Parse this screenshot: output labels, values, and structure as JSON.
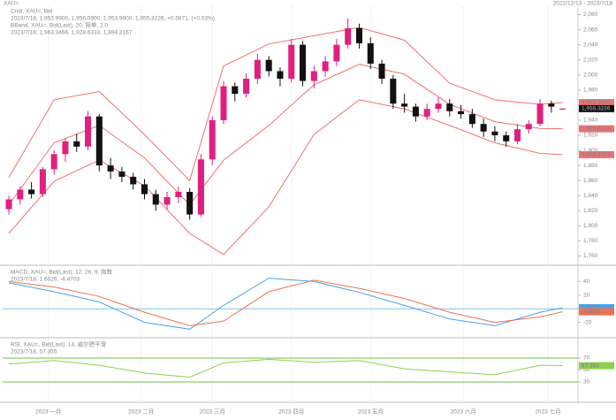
{
  "header": {
    "left": "XAU=",
    "right": "2022/12/13 - 2023/7/18"
  },
  "chart_data": [
    {
      "type": "candlestick",
      "legend": [
        {
          "text": "Cndl, XAU=, Bid",
          "color": "#222222"
        },
        {
          "text": "2023/7/18, 1,953.9900, 1,956.0900, 1,953.9900, 1,955.3226, +0.5871, (+0.03%)",
          "color": "#222222"
        },
        {
          "text": "BBand, XAU=, Bid(Last), 20, 简单, 2.0",
          "color": "#e03030"
        },
        {
          "text": "2023/7/18, 1,963.3466, 1,928.6333, 1,894.3167",
          "color": "#e03030"
        }
      ],
      "up_color": "#e0207f",
      "down_color": "#111111",
      "ohlc": [
        [
          1822,
          1840,
          1815,
          1835
        ],
        [
          1835,
          1852,
          1828,
          1848
        ],
        [
          1848,
          1858,
          1836,
          1842
        ],
        [
          1842,
          1878,
          1838,
          1875
        ],
        [
          1875,
          1900,
          1868,
          1895
        ],
        [
          1895,
          1916,
          1885,
          1912
        ],
        [
          1912,
          1922,
          1898,
          1905
        ],
        [
          1905,
          1952,
          1900,
          1945
        ],
        [
          1945,
          1948,
          1872,
          1880
        ],
        [
          1880,
          1890,
          1862,
          1872
        ],
        [
          1872,
          1878,
          1858,
          1865
        ],
        [
          1865,
          1870,
          1848,
          1855
        ],
        [
          1855,
          1862,
          1835,
          1842
        ],
        [
          1842,
          1848,
          1820,
          1828
        ],
        [
          1828,
          1845,
          1822,
          1838
        ],
        [
          1838,
          1852,
          1830,
          1845
        ],
        [
          1845,
          1850,
          1808,
          1815
        ],
        [
          1815,
          1895,
          1812,
          1888
        ],
        [
          1888,
          1945,
          1880,
          1940
        ],
        [
          1940,
          1992,
          1935,
          1985
        ],
        [
          1985,
          1990,
          1965,
          1975
        ],
        [
          1975,
          2002,
          1970,
          1995
        ],
        [
          1995,
          2028,
          1988,
          2020
        ],
        [
          2020,
          2025,
          1998,
          2005
        ],
        [
          2005,
          2010,
          1985,
          1995
        ],
        [
          1995,
          2048,
          1990,
          2040
        ],
        [
          2040,
          2045,
          1985,
          1992
        ],
        [
          1992,
          2012,
          1982,
          2005
        ],
        [
          2005,
          2025,
          1998,
          2018
        ],
        [
          2018,
          2048,
          2012,
          2040
        ],
        [
          2040,
          2075,
          2035,
          2062
        ],
        [
          2062,
          2068,
          2035,
          2042
        ],
        [
          2042,
          2050,
          2008,
          2015
        ],
        [
          2015,
          2020,
          1988,
          1995
        ],
        [
          1995,
          2000,
          1955,
          1962
        ],
        [
          1962,
          1975,
          1950,
          1958
        ],
        [
          1958,
          1962,
          1938,
          1945
        ],
        [
          1945,
          1962,
          1940,
          1955
        ],
        [
          1955,
          1970,
          1950,
          1962
        ],
        [
          1962,
          1968,
          1945,
          1952
        ],
        [
          1952,
          1960,
          1942,
          1948
        ],
        [
          1948,
          1955,
          1930,
          1935
        ],
        [
          1935,
          1942,
          1918,
          1925
        ],
        [
          1925,
          1932,
          1912,
          1920
        ],
        [
          1920,
          1925,
          1905,
          1912
        ],
        [
          1912,
          1935,
          1908,
          1928
        ],
        [
          1928,
          1940,
          1922,
          1935
        ],
        [
          1935,
          1968,
          1932,
          1962
        ],
        [
          1962,
          1966,
          1950,
          1958
        ],
        [
          1953.99,
          1956.09,
          1953.99,
          1955.3226
        ]
      ],
      "last_label": "1,955.3226",
      "last_label_color": "#111111",
      "series": [
        {
          "color": "#f07070",
          "x": [
            0,
            4,
            8,
            12,
            16,
            19,
            23,
            27,
            31,
            35,
            39,
            43,
            47,
            49
          ],
          "values": [
            1864,
            1967,
            1978,
            1921,
            1860,
            2012,
            2041,
            2052,
            2063,
            2046,
            1989,
            1967,
            1961,
            1963.3466
          ],
          "value_labels": [
            null,
            null,
            null,
            null,
            null,
            null,
            null,
            null,
            null,
            null,
            null,
            null,
            null,
            "1,963.3466"
          ]
        },
        {
          "color": "#f07070",
          "x": [
            0,
            4,
            8,
            12,
            16,
            19,
            23,
            27,
            31,
            35,
            39,
            43,
            47,
            49
          ],
          "values": [
            1828,
            1910,
            1933,
            1890,
            1828,
            1887,
            1933,
            1987,
            2014,
            2001,
            1961,
            1938,
            1929,
            1928.6333
          ],
          "value_labels": [
            null,
            null,
            null,
            null,
            null,
            null,
            null,
            null,
            null,
            null,
            null,
            null,
            null,
            "1,928.6333"
          ]
        },
        {
          "color": "#f07070",
          "x": [
            0,
            4,
            8,
            12,
            16,
            19,
            23,
            27,
            31,
            35,
            39,
            43,
            47,
            49
          ],
          "values": [
            1790,
            1859,
            1887,
            1853,
            1790,
            1762,
            1825,
            1921,
            1967,
            1955,
            1933,
            1910,
            1896,
            1894.3167
          ],
          "value_labels": [
            null,
            null,
            null,
            null,
            null,
            null,
            null,
            null,
            null,
            null,
            null,
            null,
            null,
            "1,894.3167"
          ]
        }
      ],
      "xlim": [
        -0.55,
        50.2
      ],
      "ylim": [
        1750,
        2090
      ],
      "yticks": [
        {
          "value": 1760,
          "label": "1,760"
        },
        {
          "value": 1780,
          "label": "1,780"
        },
        {
          "value": 1800,
          "label": "1,800"
        },
        {
          "value": 1820,
          "label": "1,820"
        },
        {
          "value": 1840,
          "label": "1,840"
        },
        {
          "value": 1860,
          "label": "1,860"
        },
        {
          "value": 1880,
          "label": "1,880"
        },
        {
          "value": 1900,
          "label": "1,900"
        },
        {
          "value": 1920,
          "label": "1,920"
        },
        {
          "value": 1940,
          "label": "1,940"
        },
        {
          "value": 1960,
          "label": "1,960"
        },
        {
          "value": 1980,
          "label": "1,980"
        },
        {
          "value": 2000,
          "label": "2,000"
        },
        {
          "value": 2020,
          "label": "2,020"
        },
        {
          "value": 2040,
          "label": "2,040"
        },
        {
          "value": 2060,
          "label": "2,060"
        },
        {
          "value": 2080,
          "label": "2,080"
        }
      ],
      "xticks": [
        {
          "value": 3.5,
          "label": "2023 一月"
        },
        {
          "value": 11.7,
          "label": "2023 二月"
        },
        {
          "value": 18,
          "label": "2023 三月"
        },
        {
          "value": 25,
          "label": "2023 四月"
        },
        {
          "value": 32,
          "label": "2023 五月"
        },
        {
          "value": 40.2,
          "label": "2023 六月"
        },
        {
          "value": 47.7,
          "label": "2023 七月"
        }
      ]
    },
    {
      "type": "line",
      "legend": [
        {
          "text": "MACD, XAU=, Bid(Last), 12, 26, 9, 指数",
          "color": "#3a8fd8"
        },
        {
          "text": "2023/7/18, 1.6026, -4.4703",
          "color": "#3a8fd8"
        }
      ],
      "reference_lines": [
        0
      ],
      "reference_color": "#7fc4f0",
      "series": [
        {
          "color": "#4aa3e8",
          "x": [
            0,
            4,
            8,
            12,
            16,
            19,
            23,
            27,
            31,
            35,
            39,
            43,
            47,
            49
          ],
          "values": [
            38,
            25,
            10,
            -20,
            -30,
            5,
            45,
            40,
            24,
            5,
            -15,
            -25,
            -5,
            1.6026
          ],
          "value_labels": [
            null,
            null,
            null,
            null,
            null,
            null,
            null,
            null,
            null,
            null,
            null,
            null,
            null,
            "1.6026"
          ]
        },
        {
          "color": "#f07050",
          "x": [
            0,
            4,
            8,
            12,
            16,
            19,
            23,
            27,
            31,
            35,
            39,
            43,
            47,
            49
          ],
          "values": [
            40,
            32,
            18,
            -5,
            -25,
            -18,
            25,
            42,
            30,
            15,
            -5,
            -20,
            -12,
            -4.4703
          ],
          "value_labels": [
            null,
            null,
            null,
            null,
            null,
            null,
            null,
            null,
            null,
            null,
            null,
            null,
            null,
            "-4.4703"
          ]
        }
      ],
      "xlim": [
        -0.55,
        50.2
      ],
      "ylim": [
        -40,
        60
      ],
      "yticks": [
        -20,
        0,
        20,
        40
      ]
    },
    {
      "type": "line",
      "legend": [
        {
          "text": "RSI, XAU=, Bid(Last), 14, 威尔德平滑",
          "color": "#6cbf3a"
        },
        {
          "text": "2023/7/18, 57.355",
          "color": "#6cbf3a"
        }
      ],
      "reference_lines": [
        30,
        70
      ],
      "reference_color": "#6cc04a",
      "series": [
        {
          "color": "#8fd14f",
          "x": [
            0,
            4,
            8,
            12,
            16,
            19,
            23,
            27,
            31,
            35,
            39,
            43,
            47,
            49
          ],
          "values": [
            60,
            66,
            58,
            45,
            38,
            62,
            68,
            63,
            66,
            52,
            47,
            42,
            58,
            57.355
          ],
          "value_labels": [
            null,
            null,
            null,
            null,
            null,
            null,
            null,
            null,
            null,
            null,
            null,
            null,
            null,
            "57.355"
          ]
        }
      ],
      "xlim": [
        -0.55,
        50.2
      ],
      "ylim": [
        0,
        100
      ],
      "yticks": [
        30,
        50,
        70
      ]
    }
  ]
}
